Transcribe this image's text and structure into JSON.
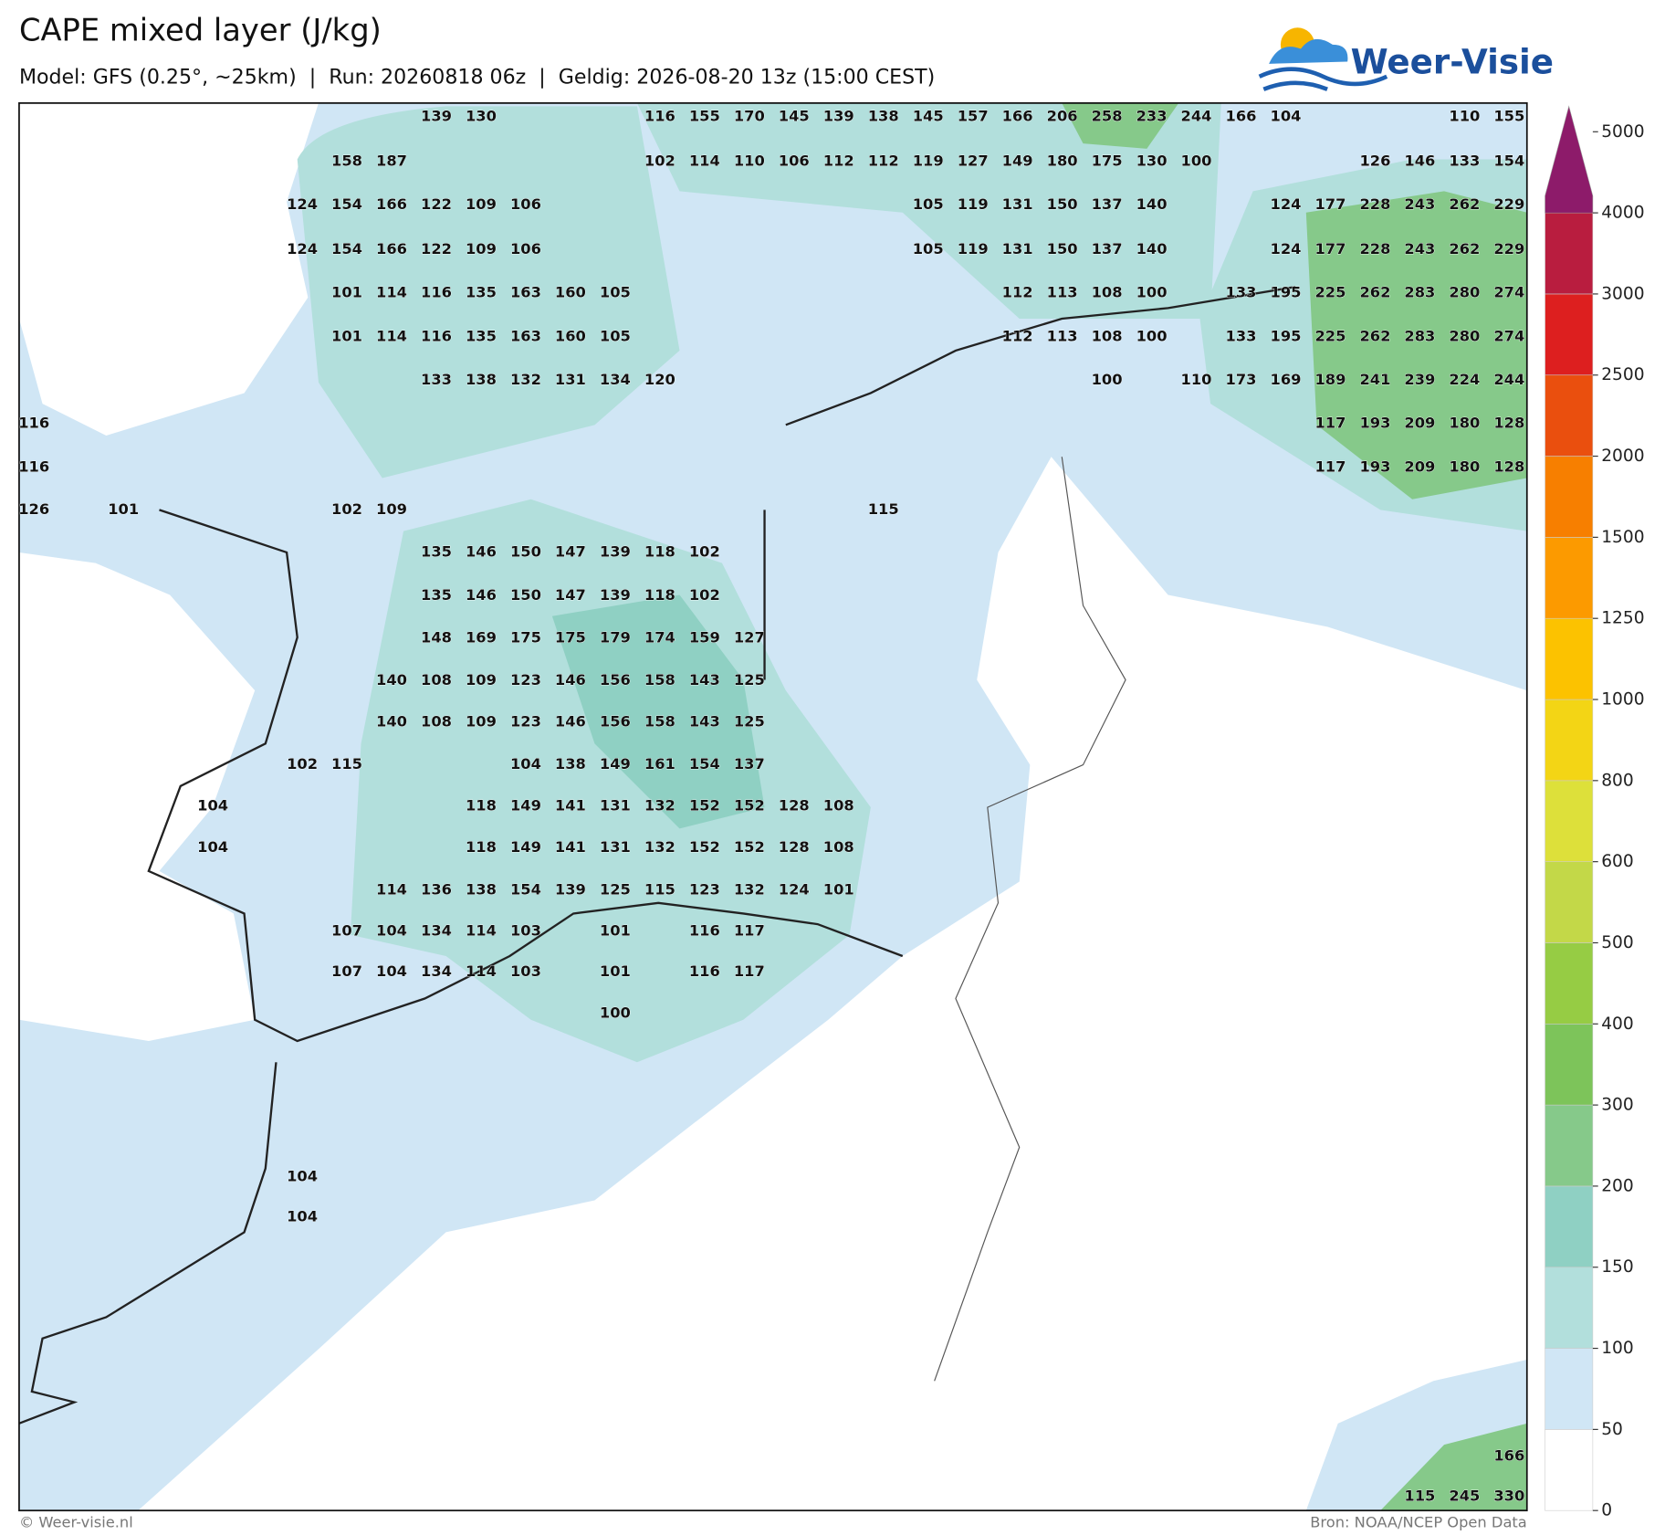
{
  "header": {
    "title": "CAPE mixed layer (J/kg)",
    "subtitle": "Model: GFS (0.25°, ~25km)  |  Run: 20260818 06z  |  Geldig: 2026-08-20 13z (15:00 CEST)",
    "logo": "Weer-Visie"
  },
  "footer": {
    "left": "© Weer-visie.nl",
    "right": "Bron: NOAA/NCEP Open Data"
  },
  "colorbar": {
    "ticks": [
      0,
      50,
      100,
      150,
      200,
      300,
      400,
      500,
      600,
      800,
      1000,
      1250,
      1500,
      2000,
      2500,
      3000,
      4000,
      5000
    ],
    "colors": [
      "#ffffff",
      "#d0e6f5",
      "#b2dfdc",
      "#8fd0c3",
      "#86c98a",
      "#7dc45a",
      "#96cc44",
      "#c3d848",
      "#dde03a",
      "#f3d515",
      "#fcc200",
      "#fc9a00",
      "#f77f00",
      "#ea4f0e",
      "#dd1f1f",
      "#b91d3f",
      "#8d1b6a"
    ]
  },
  "map": {
    "labels": [
      [
        null,
        null,
        null,
        null,
        null,
        null,
        null,
        null,
        null,
        139,
        130,
        null,
        null,
        null,
        116,
        155,
        170,
        145,
        139,
        138,
        145,
        157,
        166,
        206,
        258,
        233,
        244,
        166,
        104,
        null,
        null,
        null,
        110,
        155
      ],
      [
        null,
        null,
        null,
        null,
        null,
        null,
        null,
        158,
        187,
        null,
        null,
        null,
        null,
        null,
        102,
        114,
        110,
        106,
        112,
        112,
        119,
        127,
        149,
        180,
        175,
        130,
        100,
        null,
        null,
        null,
        126,
        146,
        133,
        154
      ],
      [
        null,
        null,
        null,
        null,
        null,
        null,
        124,
        154,
        166,
        122,
        109,
        106,
        null,
        null,
        null,
        null,
        null,
        null,
        null,
        null,
        105,
        119,
        131,
        150,
        137,
        140,
        null,
        null,
        124,
        177,
        228,
        243,
        262,
        229
      ],
      [
        null,
        null,
        null,
        null,
        null,
        null,
        124,
        154,
        166,
        122,
        109,
        106,
        null,
        null,
        null,
        null,
        null,
        null,
        null,
        null,
        105,
        119,
        131,
        150,
        137,
        140,
        null,
        null,
        124,
        177,
        228,
        243,
        262,
        229
      ],
      [
        null,
        null,
        null,
        null,
        null,
        null,
        null,
        101,
        114,
        116,
        135,
        163,
        160,
        105,
        null,
        null,
        null,
        null,
        null,
        null,
        null,
        null,
        112,
        113,
        108,
        100,
        null,
        133,
        195,
        225,
        262,
        283,
        280,
        274
      ],
      [
        null,
        null,
        null,
        null,
        null,
        null,
        null,
        101,
        114,
        116,
        135,
        163,
        160,
        105,
        null,
        null,
        null,
        null,
        null,
        null,
        null,
        null,
        112,
        113,
        108,
        100,
        null,
        133,
        195,
        225,
        262,
        283,
        280,
        274
      ],
      [
        null,
        null,
        null,
        null,
        null,
        null,
        null,
        null,
        null,
        133,
        138,
        132,
        131,
        134,
        120,
        null,
        null,
        null,
        null,
        null,
        null,
        null,
        null,
        null,
        100,
        null,
        110,
        173,
        169,
        189,
        241,
        239,
        224,
        244
      ],
      [
        116,
        null,
        null,
        null,
        null,
        null,
        null,
        null,
        null,
        null,
        null,
        null,
        null,
        null,
        null,
        null,
        null,
        null,
        null,
        null,
        null,
        null,
        null,
        null,
        null,
        null,
        null,
        null,
        null,
        117,
        193,
        209,
        180,
        128
      ],
      [
        116,
        null,
        null,
        null,
        null,
        null,
        null,
        null,
        null,
        null,
        null,
        null,
        null,
        null,
        null,
        null,
        null,
        null,
        null,
        null,
        null,
        null,
        null,
        null,
        null,
        null,
        null,
        null,
        null,
        117,
        193,
        209,
        180,
        128
      ],
      [
        126,
        null,
        101,
        null,
        null,
        null,
        null,
        102,
        109,
        null,
        null,
        null,
        null,
        null,
        null,
        null,
        null,
        null,
        null,
        115
      ],
      [
        null,
        null,
        null,
        null,
        null,
        null,
        null,
        null,
        null,
        135,
        146,
        150,
        147,
        139,
        118,
        102
      ],
      [
        null,
        null,
        null,
        null,
        null,
        null,
        null,
        null,
        null,
        135,
        146,
        150,
        147,
        139,
        118,
        102
      ],
      [
        null,
        null,
        null,
        null,
        null,
        null,
        null,
        null,
        null,
        148,
        169,
        175,
        175,
        179,
        174,
        159,
        127
      ],
      [
        null,
        null,
        null,
        null,
        null,
        null,
        null,
        null,
        140,
        108,
        109,
        123,
        146,
        156,
        158,
        143,
        125
      ],
      [
        null,
        null,
        null,
        null,
        null,
        null,
        null,
        null,
        140,
        108,
        109,
        123,
        146,
        156,
        158,
        143,
        125
      ],
      [
        null,
        null,
        null,
        null,
        null,
        null,
        102,
        115,
        null,
        null,
        null,
        104,
        138,
        149,
        161,
        154,
        137
      ],
      [
        null,
        null,
        null,
        null,
        104,
        null,
        null,
        null,
        null,
        null,
        118,
        149,
        141,
        131,
        132,
        152,
        152,
        128,
        108
      ],
      [
        null,
        null,
        null,
        null,
        104,
        null,
        null,
        null,
        null,
        null,
        118,
        149,
        141,
        131,
        132,
        152,
        152,
        128,
        108
      ],
      [
        null,
        null,
        null,
        null,
        null,
        null,
        null,
        null,
        114,
        136,
        138,
        154,
        139,
        125,
        115,
        123,
        132,
        124,
        101
      ],
      [
        null,
        null,
        null,
        null,
        null,
        null,
        null,
        107,
        104,
        134,
        114,
        103,
        null,
        101,
        null,
        116,
        117
      ],
      [
        null,
        null,
        null,
        null,
        null,
        null,
        null,
        107,
        104,
        134,
        114,
        103,
        null,
        101,
        null,
        116,
        117
      ],
      [
        null,
        null,
        null,
        null,
        null,
        null,
        null,
        null,
        null,
        null,
        null,
        null,
        null,
        100
      ],
      [
        null,
        null,
        null,
        null,
        null,
        null,
        104
      ],
      [
        null,
        null,
        null,
        null,
        null,
        null,
        104
      ],
      [
        null,
        null,
        null,
        null,
        null,
        null,
        null,
        null,
        null,
        null,
        null,
        null,
        null,
        null,
        null,
        null,
        null,
        null,
        null,
        null,
        null,
        null,
        null,
        null,
        null,
        null,
        null,
        null,
        null,
        null,
        null,
        null,
        null,
        166
      ],
      [
        null,
        null,
        null,
        null,
        null,
        null,
        null,
        null,
        null,
        null,
        null,
        null,
        null,
        null,
        null,
        null,
        null,
        null,
        null,
        null,
        null,
        null,
        null,
        null,
        null,
        null,
        null,
        null,
        null,
        null,
        null,
        115,
        245,
        330
      ]
    ]
  }
}
